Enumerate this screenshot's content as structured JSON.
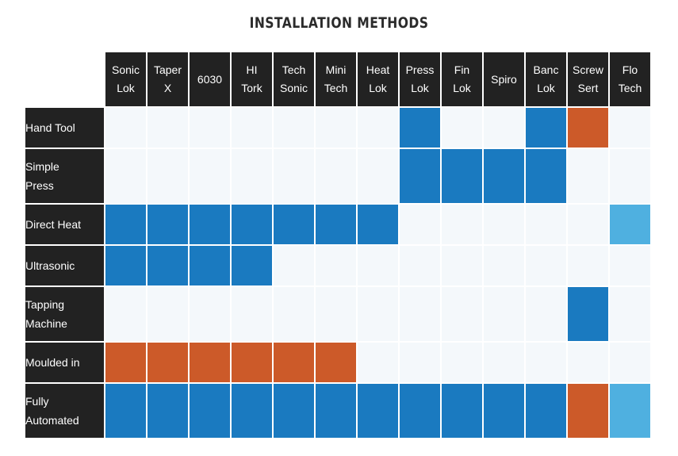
{
  "title": "INSTALLATION METHODS",
  "colors": {
    "none": "#f4f8fb",
    "blue": "#1a7ac0",
    "orange": "#cc5a29",
    "light_blue": "#4fb0e0",
    "header_bg": "#222222"
  },
  "chart_data": {
    "type": "heatmap",
    "title": "INSTALLATION METHODS",
    "columns": [
      "Sonic\nLok",
      "Taper\nX",
      "6030",
      "HI\nTork",
      "Tech\nSonic",
      "Mini\nTech",
      "Heat\nLok",
      "Press\nLok",
      "Fin\nLok",
      "Spiro",
      "Banc\nLok",
      "Screw\nSert",
      "Flo\nTech"
    ],
    "rows": [
      {
        "label": "Hand Tool",
        "cells": [
          "none",
          "none",
          "none",
          "none",
          "none",
          "none",
          "none",
          "blue",
          "none",
          "none",
          "blue",
          "orange",
          "none"
        ]
      },
      {
        "label": "Simple\nPress",
        "cells": [
          "none",
          "none",
          "none",
          "none",
          "none",
          "none",
          "none",
          "blue",
          "blue",
          "blue",
          "blue",
          "none",
          "none"
        ]
      },
      {
        "label": "Direct Heat",
        "cells": [
          "blue",
          "blue",
          "blue",
          "blue",
          "blue",
          "blue",
          "blue",
          "none",
          "none",
          "none",
          "none",
          "none",
          "light_blue"
        ]
      },
      {
        "label": "Ultrasonic",
        "cells": [
          "blue",
          "blue",
          "blue",
          "blue",
          "none",
          "none",
          "none",
          "none",
          "none",
          "none",
          "none",
          "none",
          "none"
        ]
      },
      {
        "label": "Tapping\nMachine",
        "cells": [
          "none",
          "none",
          "none",
          "none",
          "none",
          "none",
          "none",
          "none",
          "none",
          "none",
          "none",
          "blue",
          "none"
        ]
      },
      {
        "label": "Moulded in",
        "cells": [
          "orange",
          "orange",
          "orange",
          "orange",
          "orange",
          "orange",
          "none",
          "none",
          "none",
          "none",
          "none",
          "none",
          "none"
        ]
      },
      {
        "label": "Fully\nAutomated",
        "cells": [
          "blue",
          "blue",
          "blue",
          "blue",
          "blue",
          "blue",
          "blue",
          "blue",
          "blue",
          "blue",
          "blue",
          "orange",
          "light_blue"
        ]
      }
    ]
  }
}
